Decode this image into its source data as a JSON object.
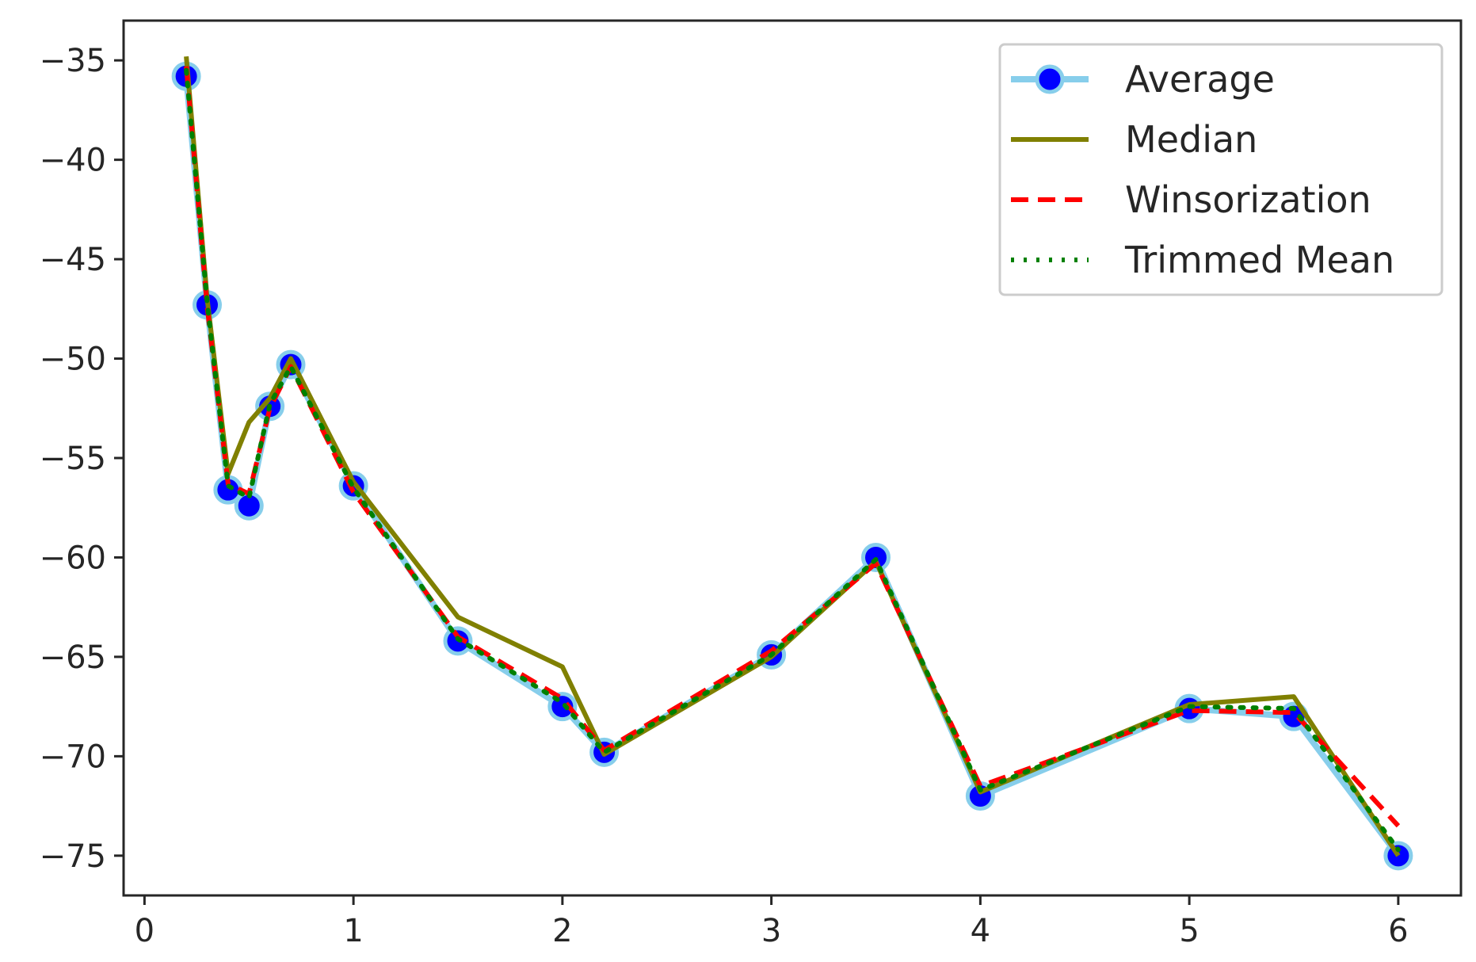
{
  "chart_data": {
    "type": "line",
    "title": "",
    "xlabel": "",
    "ylabel": "",
    "xlim": [
      -0.1,
      6.3
    ],
    "ylim": [
      -77,
      -33
    ],
    "xticks": [
      0,
      1,
      2,
      3,
      4,
      5,
      6
    ],
    "xtick_labels": [
      "0",
      "1",
      "2",
      "3",
      "4",
      "5",
      "6"
    ],
    "yticks": [
      -35,
      -40,
      -45,
      -50,
      -55,
      -60,
      -65,
      -70,
      -75
    ],
    "ytick_labels": [
      "−35",
      "−40",
      "−45",
      "−50",
      "−55",
      "−60",
      "−65",
      "−70",
      "−75"
    ],
    "grid": false,
    "legend_position": "top-right",
    "x": [
      0.2,
      0.3,
      0.4,
      0.5,
      0.6,
      0.7,
      1.0,
      1.5,
      2.0,
      2.2,
      3.0,
      3.5,
      4.0,
      5.0,
      5.5,
      6.0
    ],
    "series": [
      {
        "name": "Average",
        "color": "#87ceeb",
        "marker_color": "#0000ff",
        "style": "solid-markers",
        "values": [
          -35.8,
          -47.3,
          -56.6,
          -57.4,
          -52.4,
          -50.3,
          -56.4,
          -64.2,
          -67.5,
          -69.8,
          -64.9,
          -60.0,
          -72.0,
          -67.6,
          -68.0,
          -75.0
        ]
      },
      {
        "name": "Median",
        "color": "#808000",
        "style": "solid",
        "values": [
          -34.8,
          -47.0,
          -55.8,
          -53.2,
          -52.0,
          -50.0,
          -56.2,
          -63.0,
          -65.5,
          -69.9,
          -65.0,
          -60.2,
          -71.8,
          -67.4,
          -67.0,
          -75.0
        ]
      },
      {
        "name": "Winsorization",
        "color": "#ff0000",
        "style": "dashed",
        "values": [
          -35.3,
          -47.4,
          -56.3,
          -56.8,
          -52.5,
          -50.4,
          -56.7,
          -64.0,
          -67.1,
          -69.7,
          -64.7,
          -60.3,
          -71.5,
          -67.7,
          -67.8,
          -73.5
        ]
      },
      {
        "name": "Trimmed Mean",
        "color": "#008000",
        "style": "dotted",
        "values": [
          -35.5,
          -47.2,
          -56.4,
          -57.0,
          -52.3,
          -50.4,
          -56.5,
          -64.1,
          -67.3,
          -69.8,
          -64.9,
          -60.1,
          -71.7,
          -67.5,
          -67.6,
          -74.7
        ]
      }
    ]
  }
}
